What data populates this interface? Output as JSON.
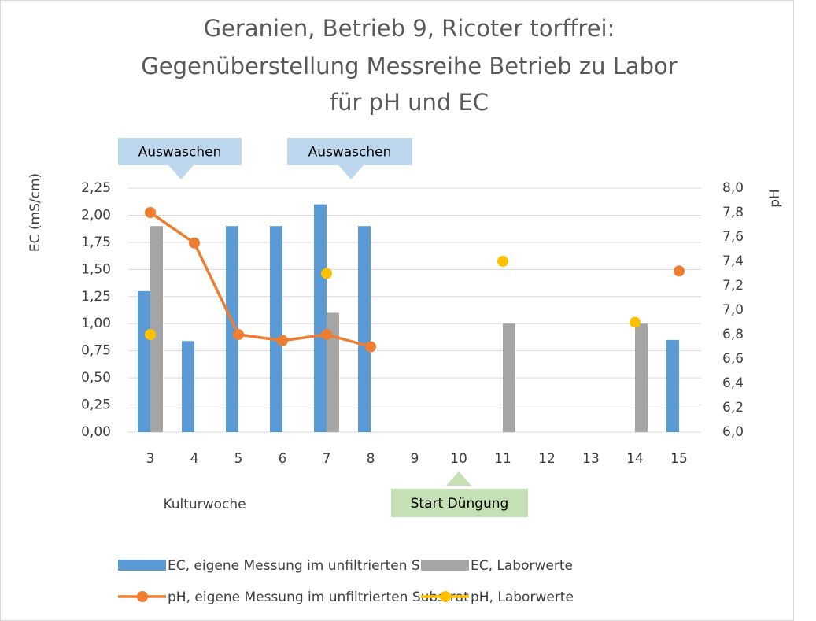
{
  "chart_data": {
    "type": "bar",
    "title": [
      "Geranien, Betrieb 9, Ricoter torffrei:",
      "Gegenüberstellung Messreihe Betrieb zu Labor",
      "für pH und EC"
    ],
    "y_label": "EC (mS/cm)",
    "y2_label": "pH",
    "x_label": "Kulturwoche",
    "annotations": [
      {
        "text": "Auswaschen",
        "color": "#bdd7ee"
      },
      {
        "text": "Auswaschen",
        "color": "#bdd7ee"
      },
      {
        "text": "Start Düngung",
        "color": "#c5e0b4"
      }
    ],
    "categories": [
      "3",
      "4",
      "5",
      "6",
      "7",
      "8",
      "9",
      "10",
      "11",
      "12",
      "13",
      "14",
      "15"
    ],
    "series": [
      {
        "name": "EC, eigene Messung im unfiltrierten Substrat",
        "type": "bar",
        "color": "#5b9bd5",
        "values": [
          1.3,
          0.84,
          1.9,
          1.9,
          2.1,
          1.9,
          null,
          null,
          null,
          null,
          null,
          null,
          0.85
        ]
      },
      {
        "name": "EC, Laborwerte",
        "type": "bar",
        "color": "#a5a5a5",
        "values": [
          1.9,
          null,
          null,
          null,
          1.1,
          null,
          null,
          null,
          1.0,
          null,
          null,
          1.0,
          null
        ]
      },
      {
        "name": "pH, eigene Messung im unfiltrierten Substrat",
        "type": "line",
        "axis": "y2",
        "color": "#ed7d31",
        "values": [
          7.8,
          7.55,
          6.8,
          6.75,
          6.8,
          6.7,
          null,
          null,
          null,
          null,
          null,
          null,
          7.32
        ]
      },
      {
        "name": "pH, Laborwerte",
        "type": "scatter",
        "axis": "y2",
        "color": "#ffc000",
        "values": [
          6.8,
          null,
          null,
          null,
          7.3,
          null,
          null,
          null,
          7.4,
          null,
          null,
          6.9,
          null
        ]
      }
    ],
    "ylim": [
      0,
      2.25
    ],
    "yticks": [
      {
        "value": 0,
        "label": "0,00"
      },
      {
        "value": 0.25,
        "label": "0,25"
      },
      {
        "value": 0.5,
        "label": "0,50"
      },
      {
        "value": 0.75,
        "label": "0,75"
      },
      {
        "value": 1,
        "label": "1,00"
      },
      {
        "value": 1.25,
        "label": "1,25"
      },
      {
        "value": 1.5,
        "label": "1,50"
      },
      {
        "value": 1.75,
        "label": "1,75"
      },
      {
        "value": 2,
        "label": "2,00"
      },
      {
        "value": 2.25,
        "label": "2,25"
      }
    ],
    "y2lim": [
      6,
      8
    ],
    "y2ticks": [
      {
        "value": 6,
        "label": "6,0"
      },
      {
        "value": 6.2,
        "label": "6,2"
      },
      {
        "value": 6.4,
        "label": "6,4"
      },
      {
        "value": 6.6,
        "label": "6,6"
      },
      {
        "value": 6.8,
        "label": "6,8"
      },
      {
        "value": 7,
        "label": "7,0"
      },
      {
        "value": 7.2,
        "label": "7,2"
      },
      {
        "value": 7.4,
        "label": "7,4"
      },
      {
        "value": 7.6,
        "label": "7,6"
      },
      {
        "value": 7.8,
        "label": "7,8"
      },
      {
        "value": 8,
        "label": "8,0"
      }
    ],
    "grid": true
  }
}
